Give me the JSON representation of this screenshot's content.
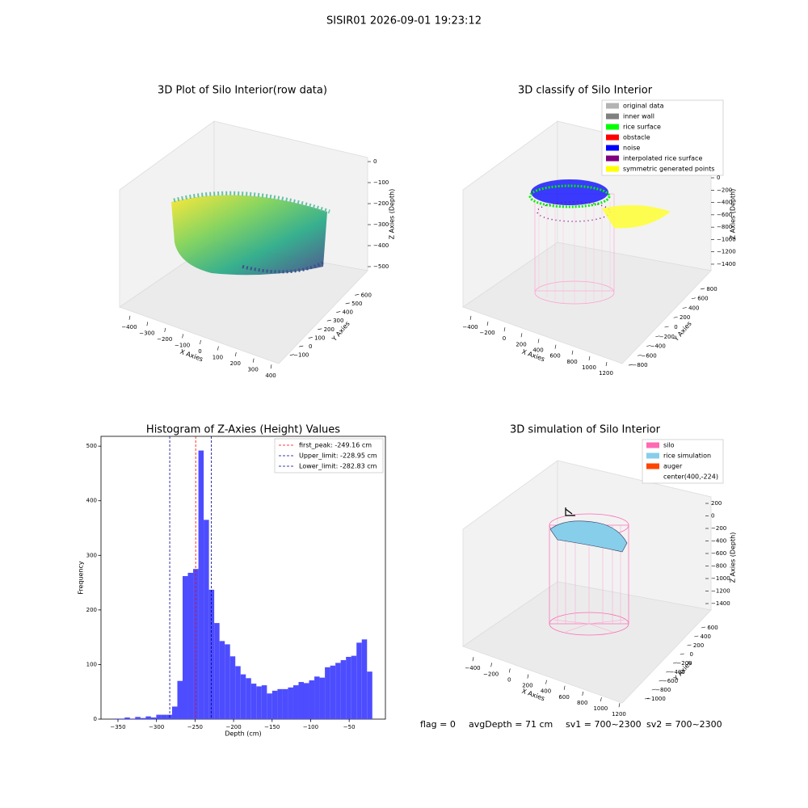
{
  "figure_title": "SISIR01 2026-09-01 19:23:12",
  "footer": [
    "flag = 0",
    "avgDepth = 71 cm",
    "sv1 = 700~2300",
    "sv2 = 700~2300"
  ],
  "chart_data": [
    {
      "type": "scatter3d",
      "title": "3D Plot of Silo Interior(row data)",
      "xlabel": "X Axies",
      "ylabel": "Y Axies",
      "zlabel": "Z Axies (Depth)",
      "xlim": [
        -450,
        450
      ],
      "ylim": [
        -150,
        650
      ],
      "zlim": [
        -550,
        50
      ],
      "xticks": [
        {
          "value": -400,
          "label": "−400"
        },
        {
          "value": -300,
          "label": "−300"
        },
        {
          "value": -200,
          "label": "−200"
        },
        {
          "value": -100,
          "label": "−100"
        },
        0,
        100,
        200,
        300,
        400
      ],
      "yticks": [
        {
          "value": -100,
          "label": "−100"
        },
        0,
        100,
        200,
        300,
        400,
        500,
        600
      ],
      "zticks": [
        0,
        {
          "value": -100,
          "label": "−100"
        },
        {
          "value": -200,
          "label": "−200"
        },
        {
          "value": -300,
          "label": "−300"
        },
        {
          "value": -400,
          "label": "−400"
        },
        {
          "value": -500,
          "label": "−500"
        }
      ]
    },
    {
      "type": "scatter3d",
      "title": "3D classify of Silo Interior",
      "xlabel": "X Axies",
      "ylabel": "Y Axies",
      "zlabel": "Z Axies (Depth)",
      "xlim": [
        -500,
        1300
      ],
      "ylim": [
        -900,
        900
      ],
      "zlim": [
        -1500,
        100
      ],
      "xticks": [
        {
          "value": -400,
          "label": "−400"
        },
        {
          "value": -200,
          "label": "−200"
        },
        0,
        200,
        400,
        600,
        800,
        1000,
        1200
      ],
      "yticks": [
        {
          "value": -800,
          "label": "−800"
        },
        {
          "value": -600,
          "label": "−600"
        },
        {
          "value": -400,
          "label": "−400"
        },
        {
          "value": -200,
          "label": "−200"
        },
        0,
        200,
        400,
        600,
        800
      ],
      "zticks": [
        0,
        {
          "value": -200,
          "label": "−200"
        },
        {
          "value": -400,
          "label": "−400"
        },
        {
          "value": -600,
          "label": "−600"
        },
        {
          "value": -800,
          "label": "−800"
        },
        {
          "value": -1000,
          "label": "−1000"
        },
        {
          "value": -1200,
          "label": "−1200"
        },
        {
          "value": -1400,
          "label": "−1400"
        }
      ],
      "legend": [
        {
          "label": "original data",
          "color": "#b3b3b3"
        },
        {
          "label": "inner wall",
          "color": "#808080"
        },
        {
          "label": "rice surface",
          "color": "#00ff00"
        },
        {
          "label": "obstacle",
          "color": "#ff0000"
        },
        {
          "label": "noise",
          "color": "#0000ff"
        },
        {
          "label": "interpolated rice surface",
          "color": "#800080"
        },
        {
          "label": "symmetric generated points",
          "color": "#ffff00"
        }
      ]
    },
    {
      "type": "histogram",
      "title": "Histogram of Z-Axies (Height) Values",
      "xlabel": "Depth (cm)",
      "ylabel": "Frequency",
      "color": "#4d4dff",
      "bins": [
        -355,
        -348.16,
        -341.33,
        -334.49,
        -327.65,
        -320.82,
        -313.98,
        -307.14,
        -300.31,
        -293.47,
        -286.63,
        -279.8,
        -272.96,
        -266.12,
        -259.29,
        -252.45,
        -245.61,
        -238.78,
        -231.94,
        -225.1,
        -218.27,
        -211.43,
        -204.59,
        -197.76,
        -190.92,
        -184.08,
        -177.24,
        -170.41,
        -163.57,
        -156.73,
        -149.9,
        -143.06,
        -136.22,
        -129.39,
        -122.55,
        -115.71,
        -108.88,
        -102.04,
        -95.2,
        -88.37,
        -81.53,
        -74.69,
        -67.86,
        -61.02,
        -54.18,
        -47.35,
        -40.51,
        -33.67,
        -26.84,
        -20
      ],
      "counts": [
        1,
        1,
        3,
        1,
        4,
        2,
        5,
        3,
        8,
        8,
        8,
        23,
        70,
        262,
        268,
        275,
        492,
        365,
        237,
        176,
        143,
        137,
        115,
        97,
        82,
        75,
        65,
        60,
        62,
        47,
        52,
        55,
        55,
        58,
        62,
        68,
        66,
        71,
        78,
        76,
        95,
        98,
        103,
        108,
        114,
        116,
        140,
        146,
        87
      ],
      "xlim": [
        -372,
        -3
      ],
      "ylim": [
        0,
        518
      ],
      "xticks": [
        {
          "value": -350,
          "label": "−350"
        },
        {
          "value": -300,
          "label": "−300"
        },
        {
          "value": -250,
          "label": "−250"
        },
        {
          "value": -200,
          "label": "−200"
        },
        {
          "value": -150,
          "label": "−150"
        },
        {
          "value": -100,
          "label": "−100"
        },
        {
          "value": -50,
          "label": "−50"
        }
      ],
      "yticks": [
        0,
        100,
        200,
        300,
        400,
        500
      ],
      "lines": [
        {
          "label": "first_peak: -249.16 cm",
          "value": -249.16,
          "color": "#ff0000"
        },
        {
          "label": "Upper_limit: -228.95 cm",
          "value": -228.95,
          "color": "#00008b"
        },
        {
          "label": "Lower_limit: -282.83 cm",
          "value": -282.83,
          "color": "#00008b"
        }
      ],
      "legend_loc": "upper right"
    },
    {
      "type": "surface3d",
      "title": "3D simulation of Silo Interior",
      "xlabel": "X Axies",
      "ylabel": "Y Axies",
      "zlabel": "Z Axies (Depth)",
      "xlim": [
        -500,
        1300
      ],
      "ylim": [
        -1100,
        700
      ],
      "zlim": [
        -1500,
        300
      ],
      "xticks": [
        {
          "value": -400,
          "label": "−400"
        },
        {
          "value": -200,
          "label": "−200"
        },
        0,
        200,
        400,
        600,
        800,
        1000,
        1200
      ],
      "yticks": [
        {
          "value": -1000,
          "label": "−1000"
        },
        {
          "value": -800,
          "label": "−800"
        },
        {
          "value": -600,
          "label": "−600"
        },
        {
          "value": -400,
          "label": "−400"
        },
        {
          "value": -200,
          "label": "−200"
        },
        0,
        200,
        400,
        600
      ],
      "zticks": [
        200,
        0,
        {
          "value": -200,
          "label": "−200"
        },
        {
          "value": -400,
          "label": "−400"
        },
        {
          "value": -600,
          "label": "−600"
        },
        {
          "value": -800,
          "label": "−800"
        },
        {
          "value": -1000,
          "label": "−1000"
        },
        {
          "value": -1200,
          "label": "−1200"
        },
        {
          "value": -1400,
          "label": "−1400"
        }
      ],
      "legend": [
        {
          "label": "silo",
          "color": "#ff69b4"
        },
        {
          "label": "rice simulation",
          "color": "#87ceeb"
        },
        {
          "label": "auger",
          "color": "#ff4500"
        },
        {
          "label": "center(400,-224)"
        }
      ]
    }
  ]
}
